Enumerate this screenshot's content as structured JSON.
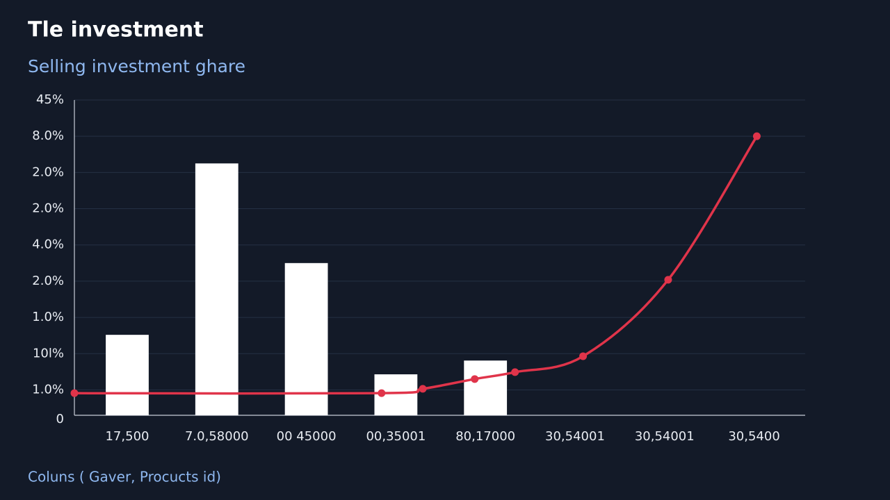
{
  "chart_data": {
    "type": "bar",
    "title": "Tle investment",
    "subtitle": "Selling investment ghare",
    "footer": "Coluns ( Gaver, Procucts id)",
    "categories": [
      "17,500",
      "7.0,58000",
      "00 45000",
      "00,35001",
      "80,17000",
      "30,54001",
      "30,54001",
      "30,5400"
    ],
    "xlim": [
      -0.59,
      7.57
    ],
    "ylim": [
      0,
      8.7
    ],
    "yticks": [
      0,
      {
        "value": 0.7,
        "label": "1.0%"
      },
      {
        "value": 1.7,
        "label": "10l%"
      },
      {
        "value": 2.7,
        "label": "1.0%"
      },
      {
        "value": 3.7,
        "label": "2.0%"
      },
      {
        "value": 4.7,
        "label": "4.0%"
      },
      {
        "value": 5.7,
        "label": "2.0%"
      },
      {
        "value": 6.7,
        "label": "2.0%"
      },
      {
        "value": 7.7,
        "label": "8.0%"
      },
      {
        "value": 8.7,
        "label": "45%"
      }
    ],
    "grid": true,
    "series": [
      {
        "type": "bar",
        "color": "#ffffff",
        "values": [
          2.22,
          6.95,
          4.2,
          1.13,
          1.51,
          null,
          null,
          null
        ]
      },
      {
        "type": "line",
        "color": "#e0344a",
        "x": [
          -0.59,
          2.84,
          3.3,
          3.88,
          4.33,
          5.09,
          6.04,
          7.03
        ],
        "values": [
          0.61,
          0.61,
          0.73,
          1.0,
          1.19,
          1.63,
          3.74,
          7.7
        ]
      }
    ]
  }
}
